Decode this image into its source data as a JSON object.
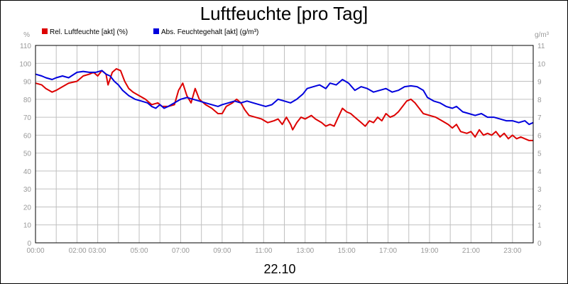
{
  "chart_data": {
    "type": "line",
    "title": "Luftfeuchte [pro Tag]",
    "date_label": "22.10",
    "y_left": {
      "unit": "%",
      "min": 0,
      "max": 110,
      "ticks": [
        "0",
        "10",
        "20",
        "30",
        "40",
        "50",
        "60",
        "70",
        "80",
        "90",
        "100",
        "110"
      ]
    },
    "y_right": {
      "unit": "g/m³",
      "min": 0,
      "max": 11,
      "ticks": [
        "0",
        "1",
        "2",
        "3",
        "4",
        "5",
        "6",
        "7",
        "8",
        "9",
        "10",
        "11"
      ]
    },
    "x_range_hours": [
      0,
      24
    ],
    "x_tick_labels": [
      {
        "hour": 0,
        "label": "00:00"
      },
      {
        "hour": 2.5,
        "label": "02:00 03:00"
      },
      {
        "hour": 5,
        "label": "05:00"
      },
      {
        "hour": 7,
        "label": "07:00"
      },
      {
        "hour": 9,
        "label": "09:00"
      },
      {
        "hour": 11,
        "label": "11:00"
      },
      {
        "hour": 13,
        "label": "13:00"
      },
      {
        "hour": 15,
        "label": "15:00"
      },
      {
        "hour": 17,
        "label": "17:00"
      },
      {
        "hour": 19,
        "label": "19:00"
      },
      {
        "hour": 21,
        "label": "21:00"
      },
      {
        "hour": 23,
        "label": "23:00"
      }
    ],
    "grid": true,
    "legend_position": "top-left",
    "series": [
      {
        "name": "Rel. Luftfeuchte [akt] (%)",
        "color": "#dd0000",
        "axis": "left",
        "points": [
          [
            0,
            89
          ],
          [
            0.3,
            88
          ],
          [
            0.5,
            86
          ],
          [
            0.8,
            84
          ],
          [
            1,
            85
          ],
          [
            1.3,
            87
          ],
          [
            1.6,
            89
          ],
          [
            2,
            90
          ],
          [
            2.3,
            93
          ],
          [
            2.6,
            94
          ],
          [
            2.8,
            95
          ],
          [
            3,
            93
          ],
          [
            3.2,
            96
          ],
          [
            3.4,
            94
          ],
          [
            3.5,
            88
          ],
          [
            3.7,
            95
          ],
          [
            3.9,
            97
          ],
          [
            4.1,
            96
          ],
          [
            4.3,
            90
          ],
          [
            4.5,
            86
          ],
          [
            4.7,
            84
          ],
          [
            5,
            82
          ],
          [
            5.3,
            80
          ],
          [
            5.6,
            77
          ],
          [
            5.9,
            78
          ],
          [
            6.1,
            76
          ],
          [
            6.4,
            76
          ],
          [
            6.7,
            77
          ],
          [
            6.9,
            85
          ],
          [
            7.1,
            89
          ],
          [
            7.3,
            82
          ],
          [
            7.5,
            78
          ],
          [
            7.7,
            86
          ],
          [
            7.9,
            80
          ],
          [
            8.2,
            77
          ],
          [
            8.5,
            75
          ],
          [
            8.8,
            72
          ],
          [
            9,
            72
          ],
          [
            9.2,
            76
          ],
          [
            9.5,
            78
          ],
          [
            9.7,
            80
          ],
          [
            9.9,
            78
          ],
          [
            10.1,
            74
          ],
          [
            10.3,
            71
          ],
          [
            10.6,
            70
          ],
          [
            10.9,
            69
          ],
          [
            11.2,
            67
          ],
          [
            11.5,
            68
          ],
          [
            11.7,
            69
          ],
          [
            11.9,
            66
          ],
          [
            12,
            68
          ],
          [
            12.1,
            70
          ],
          [
            12.3,
            66
          ],
          [
            12.4,
            63
          ],
          [
            12.6,
            67
          ],
          [
            12.8,
            70
          ],
          [
            13,
            69
          ],
          [
            13.3,
            71
          ],
          [
            13.5,
            69
          ],
          [
            13.8,
            67
          ],
          [
            14,
            65
          ],
          [
            14.2,
            66
          ],
          [
            14.4,
            65
          ],
          [
            14.6,
            70
          ],
          [
            14.8,
            75
          ],
          [
            15,
            73
          ],
          [
            15.2,
            72
          ],
          [
            15.4,
            70
          ],
          [
            15.6,
            68
          ],
          [
            15.9,
            65
          ],
          [
            16.1,
            68
          ],
          [
            16.3,
            67
          ],
          [
            16.5,
            70
          ],
          [
            16.7,
            68
          ],
          [
            16.9,
            72
          ],
          [
            17.1,
            70
          ],
          [
            17.3,
            71
          ],
          [
            17.5,
            73
          ],
          [
            17.7,
            76
          ],
          [
            17.9,
            79
          ],
          [
            18.1,
            80
          ],
          [
            18.3,
            78
          ],
          [
            18.5,
            75
          ],
          [
            18.7,
            72
          ],
          [
            19,
            71
          ],
          [
            19.3,
            70
          ],
          [
            19.6,
            68
          ],
          [
            19.9,
            66
          ],
          [
            20.1,
            64
          ],
          [
            20.3,
            66
          ],
          [
            20.5,
            62
          ],
          [
            20.8,
            61
          ],
          [
            21,
            62
          ],
          [
            21.2,
            59
          ],
          [
            21.4,
            63
          ],
          [
            21.6,
            60
          ],
          [
            21.8,
            61
          ],
          [
            22,
            60
          ],
          [
            22.2,
            62
          ],
          [
            22.4,
            59
          ],
          [
            22.6,
            61
          ],
          [
            22.8,
            58
          ],
          [
            23,
            60
          ],
          [
            23.2,
            58
          ],
          [
            23.4,
            59
          ],
          [
            23.6,
            58
          ],
          [
            23.8,
            57
          ],
          [
            24,
            57
          ]
        ]
      },
      {
        "name": "Abs. Feuchtegehalt [akt] (g/m³)",
        "color": "#0000dd",
        "axis": "right",
        "points": [
          [
            0,
            9.4
          ],
          [
            0.3,
            9.3
          ],
          [
            0.5,
            9.2
          ],
          [
            0.8,
            9.1
          ],
          [
            1,
            9.2
          ],
          [
            1.3,
            9.3
          ],
          [
            1.6,
            9.2
          ],
          [
            2,
            9.5
          ],
          [
            2.3,
            9.55
          ],
          [
            2.6,
            9.5
          ],
          [
            2.9,
            9.5
          ],
          [
            3.2,
            9.6
          ],
          [
            3.4,
            9.4
          ],
          [
            3.6,
            9.3
          ],
          [
            3.8,
            9.0
          ],
          [
            4,
            8.8
          ],
          [
            4.2,
            8.5
          ],
          [
            4.5,
            8.2
          ],
          [
            4.8,
            8.0
          ],
          [
            5.1,
            7.9
          ],
          [
            5.4,
            7.8
          ],
          [
            5.6,
            7.6
          ],
          [
            5.8,
            7.5
          ],
          [
            6,
            7.7
          ],
          [
            6.2,
            7.5
          ],
          [
            6.4,
            7.6
          ],
          [
            6.7,
            7.8
          ],
          [
            7,
            8.0
          ],
          [
            7.3,
            8.1
          ],
          [
            7.6,
            8.0
          ],
          [
            7.9,
            7.9
          ],
          [
            8.2,
            7.8
          ],
          [
            8.5,
            7.7
          ],
          [
            8.8,
            7.6
          ],
          [
            9,
            7.7
          ],
          [
            9.3,
            7.8
          ],
          [
            9.6,
            7.9
          ],
          [
            9.9,
            7.8
          ],
          [
            10.2,
            7.9
          ],
          [
            10.5,
            7.8
          ],
          [
            10.8,
            7.7
          ],
          [
            11.1,
            7.6
          ],
          [
            11.4,
            7.7
          ],
          [
            11.7,
            8.0
          ],
          [
            12,
            7.9
          ],
          [
            12.3,
            7.8
          ],
          [
            12.6,
            8.0
          ],
          [
            12.9,
            8.3
          ],
          [
            13.1,
            8.6
          ],
          [
            13.4,
            8.7
          ],
          [
            13.7,
            8.8
          ],
          [
            14,
            8.6
          ],
          [
            14.2,
            8.9
          ],
          [
            14.5,
            8.8
          ],
          [
            14.8,
            9.1
          ],
          [
            15.1,
            8.9
          ],
          [
            15.4,
            8.5
          ],
          [
            15.7,
            8.7
          ],
          [
            16,
            8.6
          ],
          [
            16.3,
            8.4
          ],
          [
            16.6,
            8.5
          ],
          [
            16.9,
            8.6
          ],
          [
            17.2,
            8.4
          ],
          [
            17.5,
            8.5
          ],
          [
            17.8,
            8.7
          ],
          [
            18.1,
            8.75
          ],
          [
            18.4,
            8.7
          ],
          [
            18.7,
            8.5
          ],
          [
            18.9,
            8.1
          ],
          [
            19.2,
            7.9
          ],
          [
            19.5,
            7.8
          ],
          [
            19.8,
            7.6
          ],
          [
            20.1,
            7.5
          ],
          [
            20.3,
            7.6
          ],
          [
            20.6,
            7.3
          ],
          [
            20.9,
            7.2
          ],
          [
            21.2,
            7.1
          ],
          [
            21.5,
            7.2
          ],
          [
            21.8,
            7.0
          ],
          [
            22.1,
            7.0
          ],
          [
            22.4,
            6.9
          ],
          [
            22.7,
            6.8
          ],
          [
            23,
            6.8
          ],
          [
            23.3,
            6.7
          ],
          [
            23.6,
            6.8
          ],
          [
            23.8,
            6.6
          ],
          [
            24,
            6.7
          ]
        ]
      }
    ]
  }
}
